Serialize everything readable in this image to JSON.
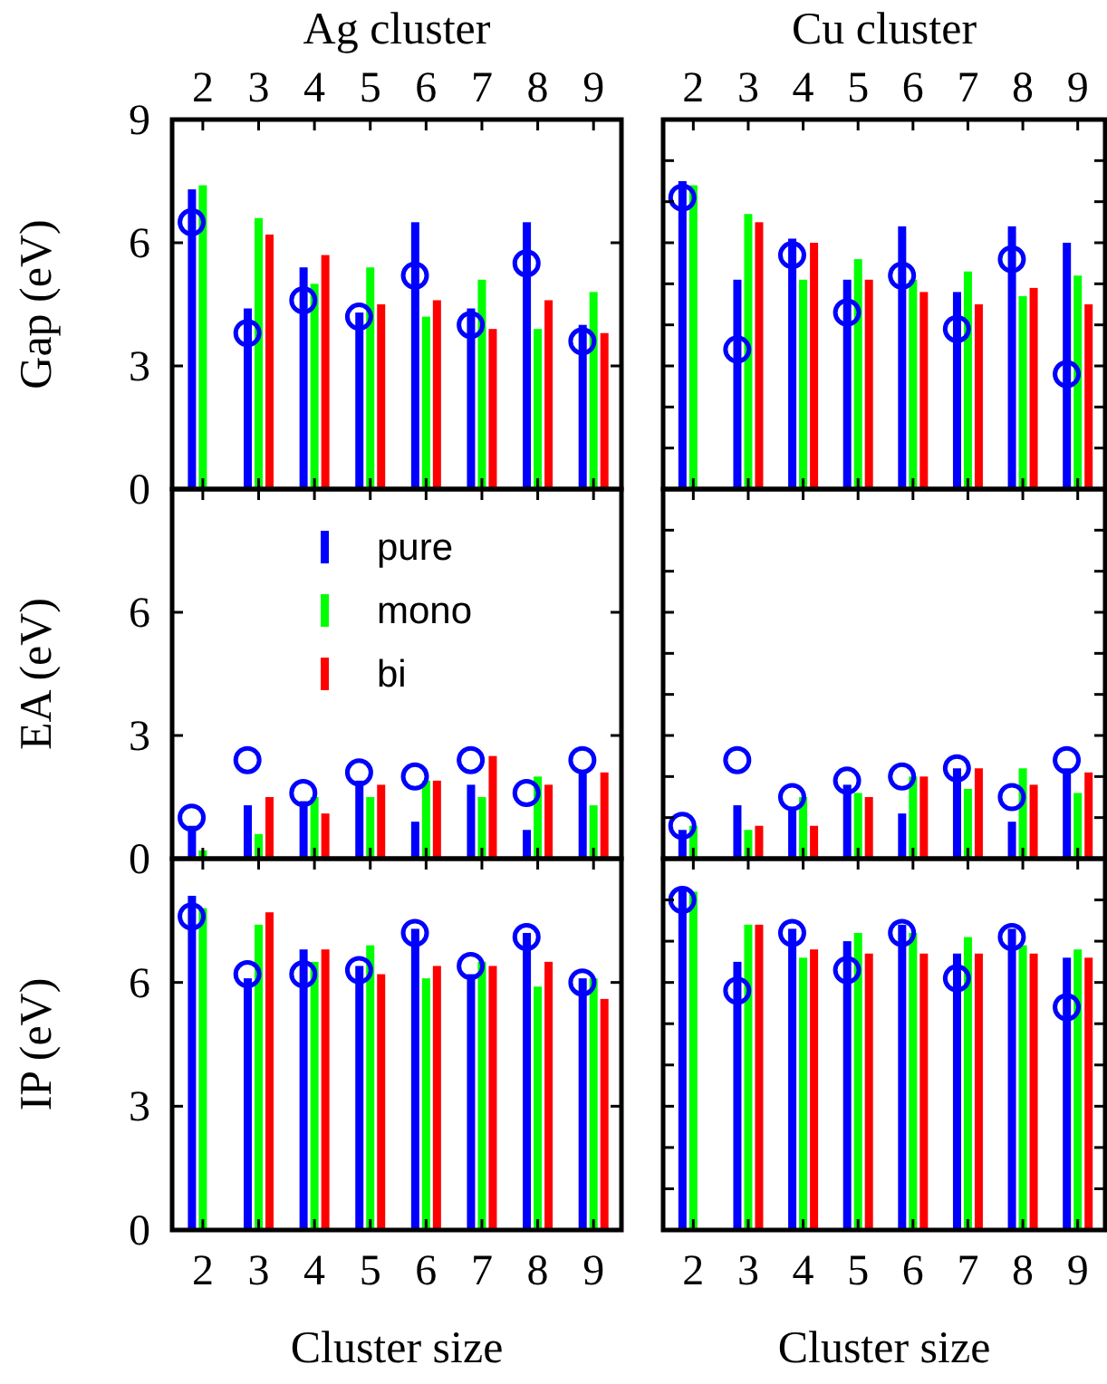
{
  "chart_data": [
    {
      "type": "bar",
      "title": "Ag cluster",
      "ylabel": "Gap (eV)",
      "x": [
        2,
        3,
        4,
        5,
        6,
        7,
        8,
        9
      ],
      "xlim": [
        1.45,
        9.5
      ],
      "xticks": [
        2,
        3,
        4,
        5,
        6,
        7,
        8,
        9
      ],
      "ylim": [
        0,
        9
      ],
      "yticks": [
        0,
        3,
        6,
        9
      ],
      "series": [
        {
          "color": "#0000ff",
          "values": [
            7.3,
            4.4,
            5.4,
            4.3,
            6.5,
            4.4,
            6.5,
            4.0
          ]
        },
        {
          "color": "#00ff00",
          "values": [
            7.4,
            6.6,
            5.0,
            5.4,
            4.2,
            5.1,
            3.9,
            4.8
          ]
        },
        {
          "color": "#ff0000",
          "values": [
            null,
            6.2,
            5.7,
            4.5,
            4.6,
            3.9,
            4.6,
            3.8
          ]
        },
        {
          "type": "scatter",
          "marker": "circle",
          "color": "#0000ff",
          "x": [
            1.8,
            2.8,
            3.8,
            4.8,
            5.8,
            6.8,
            7.8,
            8.8
          ],
          "values": [
            6.5,
            3.8,
            4.6,
            4.2,
            5.2,
            4.0,
            5.5,
            3.6
          ]
        }
      ]
    },
    {
      "type": "bar",
      "title": "Cu cluster",
      "x": [
        2,
        3,
        4,
        5,
        6,
        7,
        8,
        9
      ],
      "xlim": [
        1.45,
        9.5
      ],
      "xticks": [
        2,
        3,
        4,
        5,
        6,
        7,
        8,
        9
      ],
      "ylim": [
        0,
        9
      ],
      "yticks": [
        0,
        {
          "value": 1,
          "label": null
        },
        {
          "value": 2,
          "label": null
        },
        3,
        {
          "value": 4,
          "label": null
        },
        {
          "value": 5,
          "label": null
        },
        6,
        {
          "value": 7,
          "label": null
        },
        {
          "value": 8,
          "label": null
        },
        9
      ],
      "tick_labels": "x",
      "series": [
        {
          "color": "#0000ff",
          "values": [
            7.5,
            5.1,
            6.1,
            5.1,
            6.4,
            4.8,
            6.4,
            6.0
          ]
        },
        {
          "color": "#00ff00",
          "values": [
            7.4,
            6.7,
            5.1,
            5.6,
            5.1,
            5.3,
            4.7,
            5.2
          ]
        },
        {
          "color": "#ff0000",
          "values": [
            null,
            6.5,
            6.0,
            5.1,
            4.8,
            4.5,
            4.9,
            4.5
          ]
        },
        {
          "type": "scatter",
          "marker": "circle",
          "color": "#0000ff",
          "x": [
            1.8,
            2.8,
            3.8,
            4.8,
            5.8,
            6.8,
            7.8,
            8.8
          ],
          "values": [
            7.1,
            3.4,
            5.7,
            4.3,
            5.2,
            3.9,
            5.6,
            2.8
          ]
        }
      ]
    },
    {
      "type": "bar",
      "ylabel": "EA (eV)",
      "x": [
        2,
        3,
        4,
        5,
        6,
        7,
        8,
        9
      ],
      "xlim": [
        1.45,
        9.5
      ],
      "xticks": [
        2,
        3,
        4,
        5,
        6,
        7,
        8,
        9
      ],
      "ylim": [
        0,
        9
      ],
      "yticks": [
        0,
        3,
        6,
        {
          "value": 9,
          "label": null
        }
      ],
      "tick_labels": "y",
      "legend": "top",
      "series": [
        {
          "name": "pure",
          "color": "#0000ff",
          "values": [
            0.8,
            1.3,
            1.4,
            1.9,
            0.9,
            1.8,
            0.7,
            2.1
          ]
        },
        {
          "name": "mono",
          "color": "#00ff00",
          "values": [
            0.2,
            0.6,
            1.5,
            1.5,
            1.9,
            1.5,
            2.0,
            1.3
          ]
        },
        {
          "name": "bi",
          "color": "#ff0000",
          "values": [
            null,
            1.5,
            1.1,
            1.8,
            1.9,
            2.5,
            1.8,
            2.1
          ]
        },
        {
          "type": "scatter",
          "marker": "circle",
          "color": "#0000ff",
          "x": [
            1.8,
            2.8,
            3.8,
            4.8,
            5.8,
            6.8,
            7.8,
            8.8
          ],
          "values": [
            1.0,
            2.4,
            1.6,
            2.1,
            2.0,
            2.4,
            1.6,
            2.4
          ]
        }
      ]
    },
    {
      "type": "bar",
      "x": [
        2,
        3,
        4,
        5,
        6,
        7,
        8,
        9
      ],
      "xlim": [
        1.45,
        9.5
      ],
      "xticks": [
        2,
        3,
        4,
        5,
        6,
        7,
        8,
        9
      ],
      "ylim": [
        0,
        9
      ],
      "yticks": [
        0,
        {
          "value": 1,
          "label": null
        },
        {
          "value": 2,
          "label": null
        },
        3,
        {
          "value": 4,
          "label": null
        },
        {
          "value": 5,
          "label": null
        },
        6,
        {
          "value": 7,
          "label": null
        },
        {
          "value": 8,
          "label": null
        },
        9
      ],
      "tick_labels": false,
      "series": [
        {
          "color": "#0000ff",
          "values": [
            0.7,
            1.3,
            1.2,
            1.8,
            1.1,
            2.2,
            0.9,
            2.2
          ]
        },
        {
          "color": "#00ff00",
          "values": [
            0.8,
            0.7,
            1.5,
            1.6,
            2.0,
            1.7,
            2.2,
            1.6
          ]
        },
        {
          "color": "#ff0000",
          "values": [
            null,
            0.8,
            0.8,
            1.5,
            2.0,
            2.2,
            1.8,
            2.1
          ]
        },
        {
          "type": "scatter",
          "marker": "circle",
          "color": "#0000ff",
          "x": [
            1.8,
            2.8,
            3.8,
            4.8,
            5.8,
            6.8,
            7.8,
            8.8
          ],
          "values": [
            0.8,
            2.4,
            1.5,
            1.9,
            2.0,
            2.2,
            1.5,
            2.4
          ]
        }
      ]
    },
    {
      "type": "bar",
      "ylabel": "IP (eV)",
      "xlabel": "Cluster size",
      "x": [
        2,
        3,
        4,
        5,
        6,
        7,
        8,
        9
      ],
      "xlim": [
        1.45,
        9.5
      ],
      "xticks": [
        2,
        3,
        4,
        5,
        6,
        7,
        8,
        9
      ],
      "ylim": [
        0,
        9
      ],
      "yticks": [
        0,
        3,
        6,
        {
          "value": 9,
          "label": null
        }
      ],
      "series": [
        {
          "color": "#0000ff",
          "values": [
            8.1,
            6.1,
            6.8,
            6.4,
            7.3,
            6.2,
            7.2,
            6.1
          ]
        },
        {
          "color": "#00ff00",
          "values": [
            7.8,
            7.4,
            6.5,
            6.9,
            6.1,
            6.5,
            5.9,
            6.1
          ]
        },
        {
          "color": "#ff0000",
          "values": [
            null,
            7.7,
            6.8,
            6.2,
            6.4,
            6.4,
            6.5,
            5.6
          ]
        },
        {
          "type": "scatter",
          "marker": "circle",
          "color": "#0000ff",
          "x": [
            1.8,
            2.8,
            3.8,
            4.8,
            5.8,
            6.8,
            7.8,
            8.8
          ],
          "values": [
            7.6,
            6.2,
            6.2,
            6.3,
            7.2,
            6.4,
            7.1,
            6.0
          ]
        }
      ]
    },
    {
      "type": "bar",
      "xlabel": "Cluster size",
      "x": [
        2,
        3,
        4,
        5,
        6,
        7,
        8,
        9
      ],
      "xlim": [
        1.45,
        9.5
      ],
      "xticks": [
        2,
        3,
        4,
        5,
        6,
        7,
        8,
        9
      ],
      "ylim": [
        0,
        9
      ],
      "yticks": [
        0,
        {
          "value": 1,
          "label": null
        },
        {
          "value": 2,
          "label": null
        },
        3,
        {
          "value": 4,
          "label": null
        },
        {
          "value": 5,
          "label": null
        },
        6,
        {
          "value": 7,
          "label": null
        },
        {
          "value": 8,
          "label": null
        },
        9
      ],
      "tick_labels": "x",
      "series": [
        {
          "color": "#0000ff",
          "values": [
            8.3,
            6.5,
            7.3,
            7.0,
            7.4,
            6.7,
            7.3,
            6.6
          ]
        },
        {
          "color": "#00ff00",
          "values": [
            8.2,
            7.4,
            6.6,
            7.2,
            7.2,
            7.1,
            6.9,
            6.8
          ]
        },
        {
          "color": "#ff0000",
          "values": [
            null,
            7.4,
            6.8,
            6.7,
            6.7,
            6.7,
            6.7,
            6.6
          ]
        },
        {
          "type": "scatter",
          "marker": "circle",
          "color": "#0000ff",
          "x": [
            1.8,
            2.8,
            3.8,
            4.8,
            5.8,
            6.8,
            7.8,
            8.8
          ],
          "values": [
            8.0,
            5.8,
            7.2,
            6.3,
            7.2,
            6.1,
            7.1,
            5.4
          ]
        }
      ]
    }
  ]
}
